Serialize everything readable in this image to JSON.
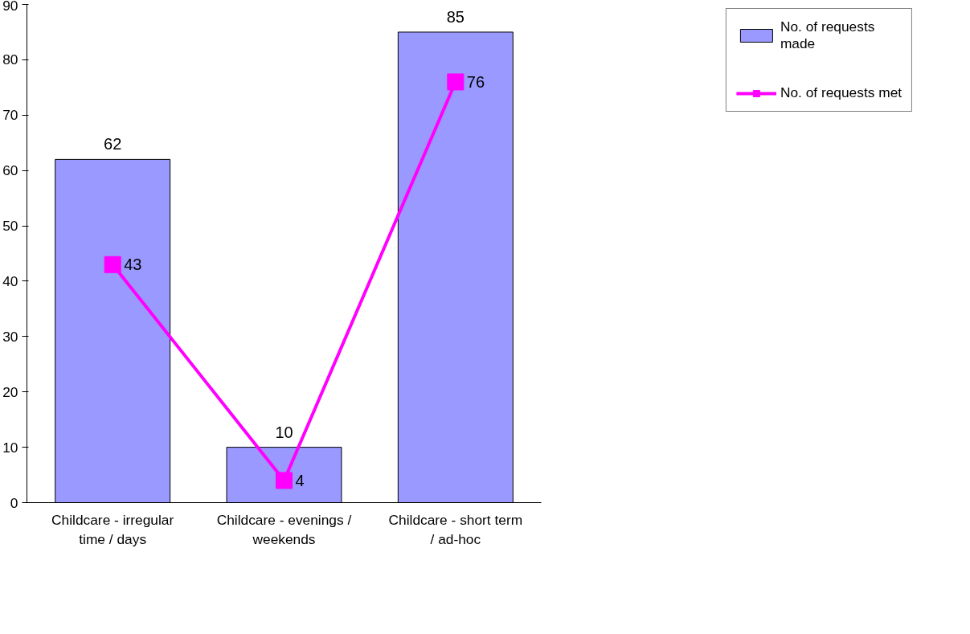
{
  "chart_data": {
    "type": "bar",
    "categories": [
      "Childcare - irregular time / days",
      "Childcare - evenings / weekends",
      "Childcare - short term / ad-hoc"
    ],
    "series": [
      {
        "name": "No. of requests made",
        "color": "#9999ff",
        "values": [
          62,
          10,
          85
        ]
      },
      {
        "name": "No. of requests met",
        "type": "line",
        "color": "#ff00ff",
        "values": [
          43,
          4,
          76
        ],
        "marker": "square"
      }
    ],
    "ylim": [
      0,
      90
    ],
    "yticks": [
      0,
      10,
      20,
      30,
      40,
      50,
      60,
      70,
      80,
      90
    ],
    "data_labels": true,
    "grid": false,
    "legend": "right"
  }
}
